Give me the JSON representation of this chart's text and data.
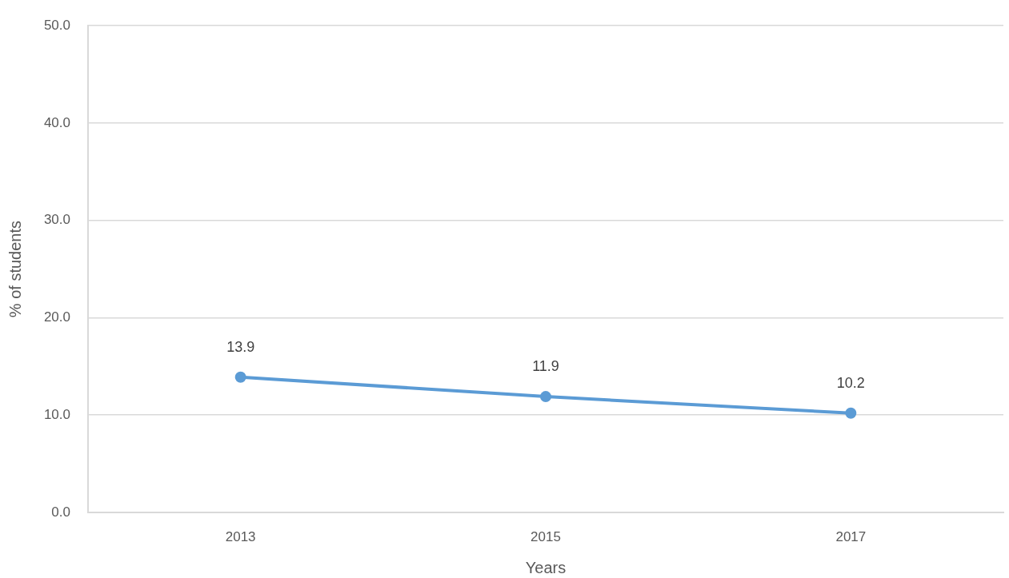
{
  "chart_data": {
    "type": "line",
    "xlabel": "Years",
    "ylabel": "% of students",
    "categories": [
      "2013",
      "2015",
      "2017"
    ],
    "series": [
      {
        "color": "#5b9bd5",
        "values": [
          13.9,
          11.9,
          10.2
        ]
      }
    ],
    "ylim": [
      0,
      50
    ],
    "yticks": [
      {
        "value": 0,
        "label": "0.0"
      },
      {
        "value": 10,
        "label": "10.0"
      },
      {
        "value": 20,
        "label": "20.0"
      },
      {
        "value": 30,
        "label": "30.0"
      },
      {
        "value": 40,
        "label": "40.0"
      },
      {
        "value": 50,
        "label": "50.0"
      }
    ],
    "grid": "y",
    "marker": "circle",
    "line_style": "solid",
    "data_labels": true
  }
}
